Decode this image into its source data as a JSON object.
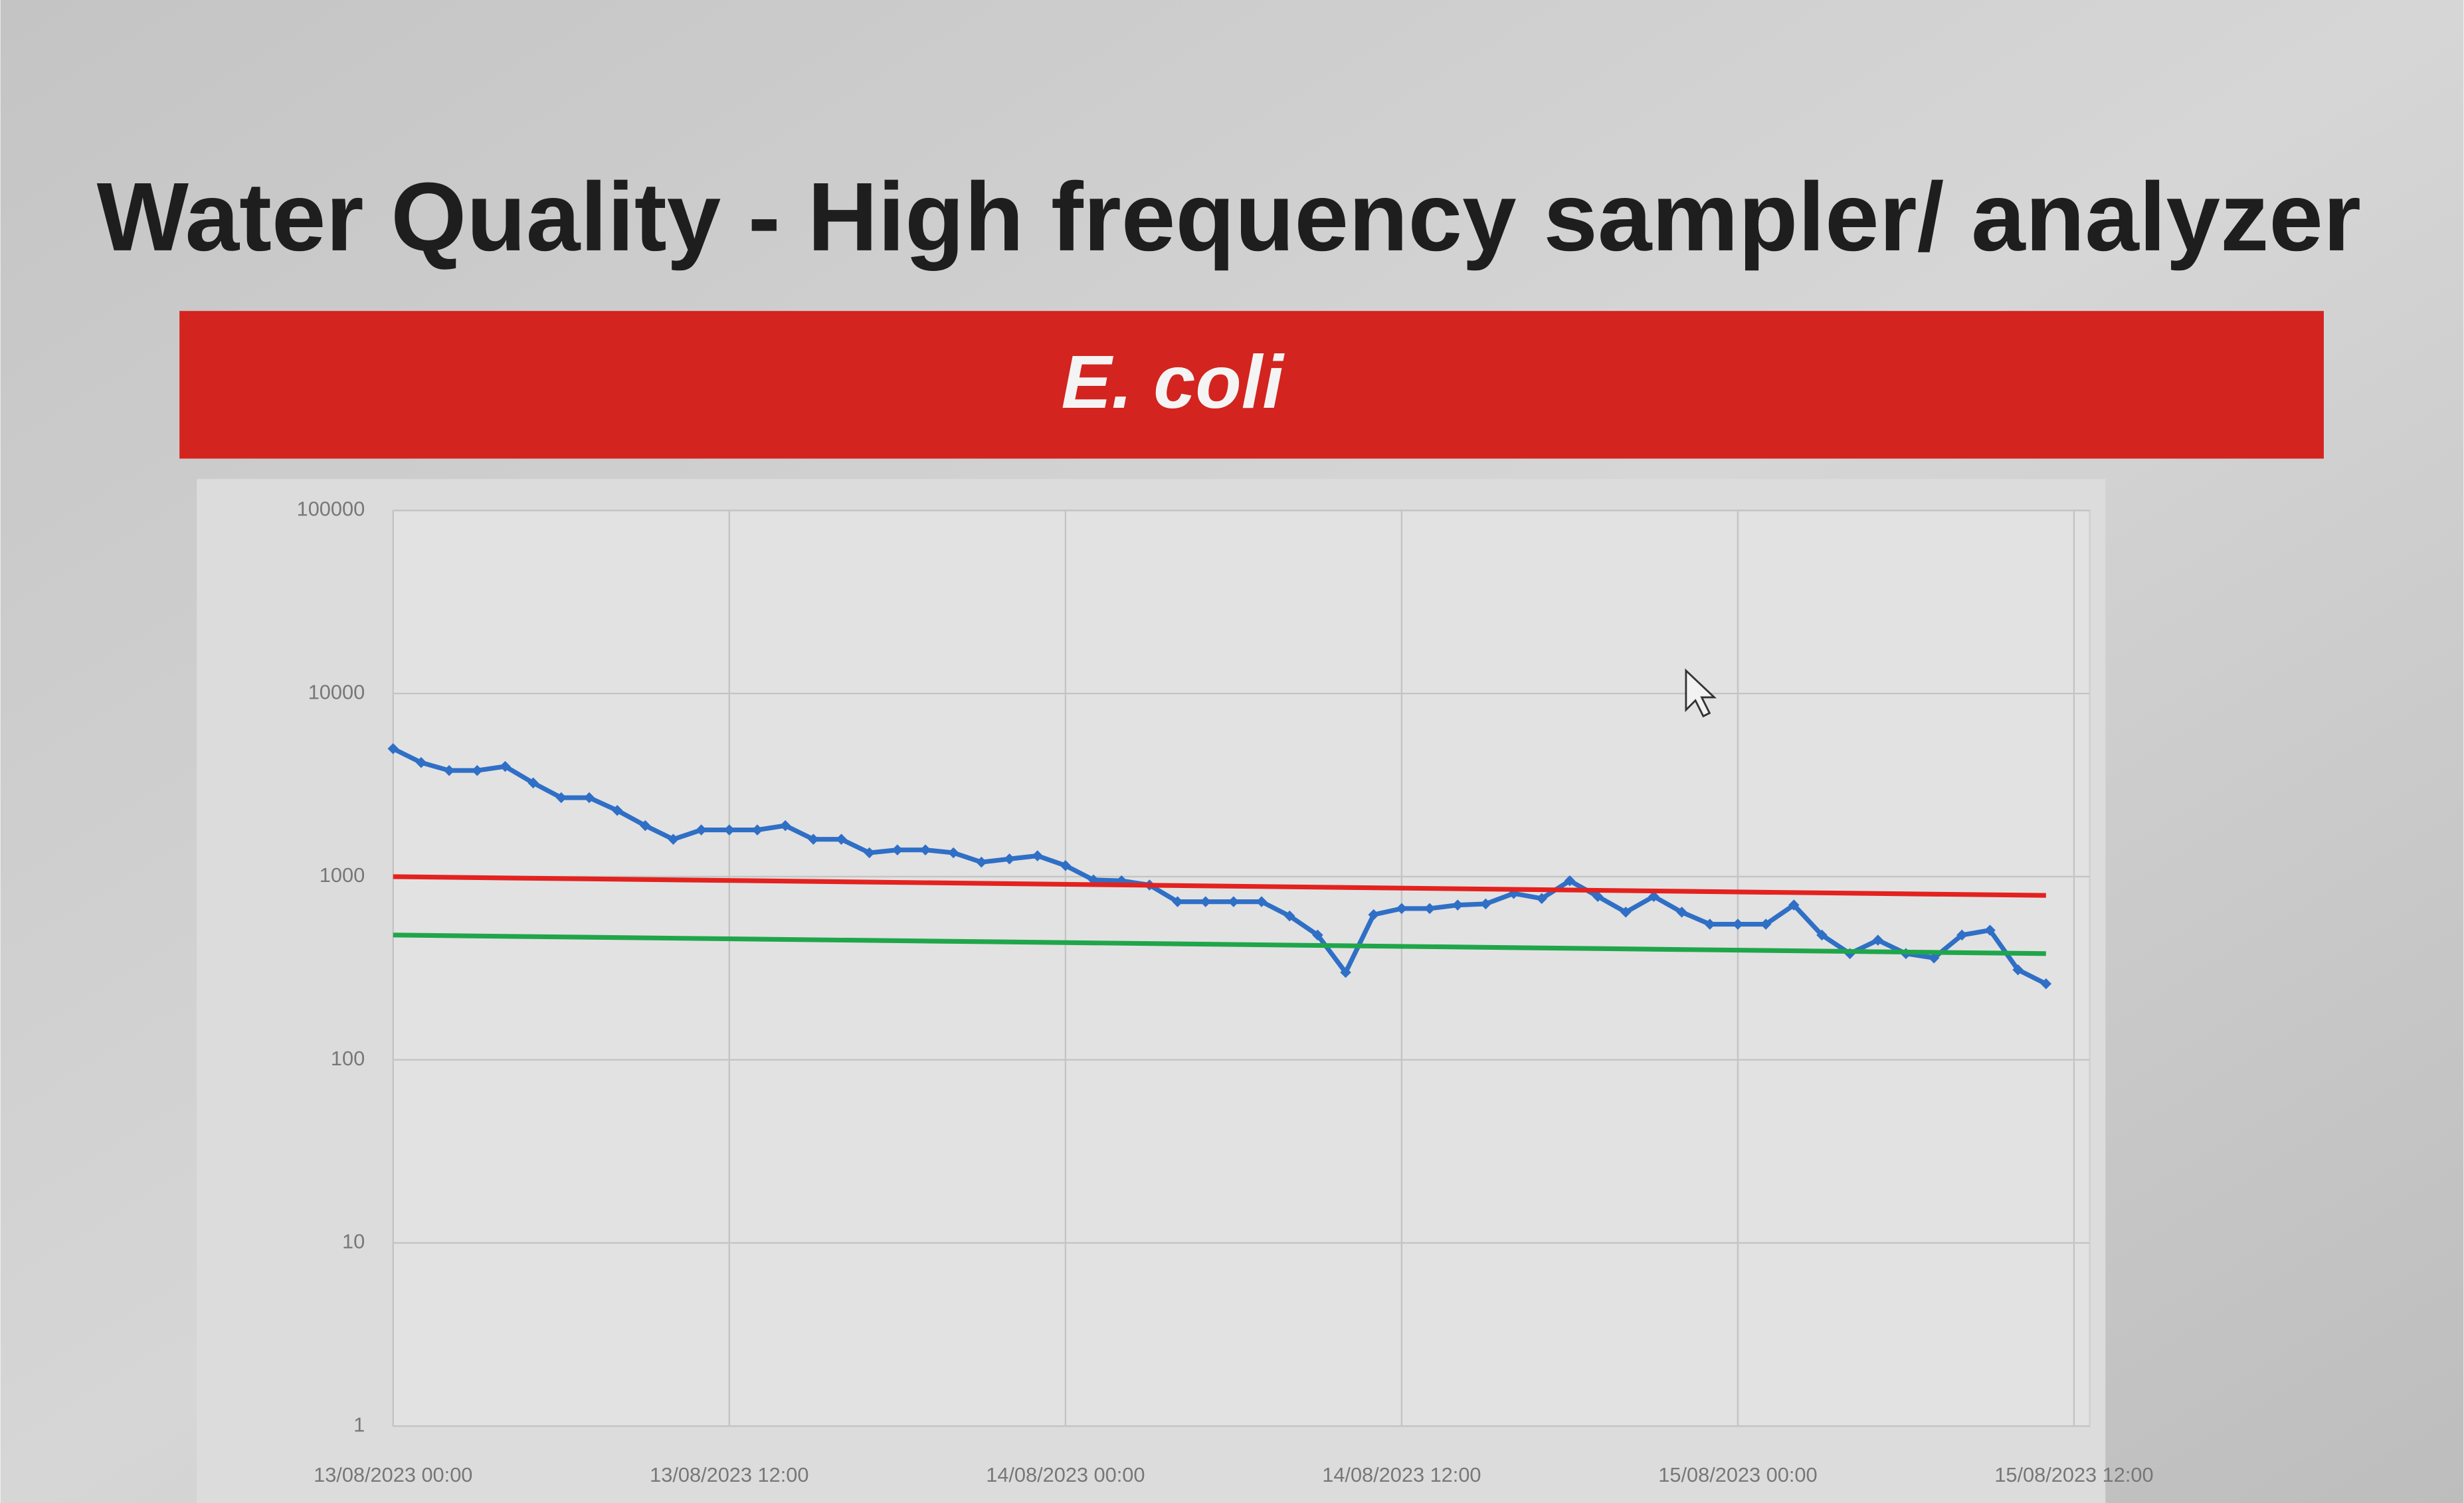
{
  "chart_data": {
    "type": "line",
    "title": "Water Quality - High frequency sampler/ analyzer",
    "subtitle": "E. coli",
    "log_scale": true,
    "grid": true,
    "ylim": [
      1,
      100000
    ],
    "yticks": [
      1,
      10,
      100,
      1000,
      10000,
      100000
    ],
    "xlim": [
      "13/08/2023 00:00",
      "15/08/2023 12:00"
    ],
    "xticks": [
      "13/08/2023 00:00",
      "13/08/2023 12:00",
      "14/08/2023 00:00",
      "14/08/2023 12:00",
      "15/08/2023 00:00",
      "15/08/2023 12:00"
    ],
    "series": [
      {
        "color": "#2f6fc6",
        "markers": true,
        "x": [
          "13/08/2023 00:00",
          "13/08/2023 01:00",
          "13/08/2023 02:00",
          "13/08/2023 03:00",
          "13/08/2023 04:00",
          "13/08/2023 05:00",
          "13/08/2023 06:00",
          "13/08/2023 07:00",
          "13/08/2023 08:00",
          "13/08/2023 09:00",
          "13/08/2023 10:00",
          "13/08/2023 11:00",
          "13/08/2023 12:00",
          "13/08/2023 13:00",
          "13/08/2023 14:00",
          "13/08/2023 15:00",
          "13/08/2023 16:00",
          "13/08/2023 17:00",
          "13/08/2023 18:00",
          "13/08/2023 19:00",
          "13/08/2023 20:00",
          "13/08/2023 21:00",
          "13/08/2023 22:00",
          "13/08/2023 23:00",
          "14/08/2023 00:00",
          "14/08/2023 01:00",
          "14/08/2023 02:00",
          "14/08/2023 03:00",
          "14/08/2023 04:00",
          "14/08/2023 05:00",
          "14/08/2023 06:00",
          "14/08/2023 07:00",
          "14/08/2023 08:00",
          "14/08/2023 09:00",
          "14/08/2023 10:00",
          "14/08/2023 11:00",
          "14/08/2023 12:00",
          "14/08/2023 13:00",
          "14/08/2023 14:00",
          "14/08/2023 15:00",
          "14/08/2023 16:00",
          "14/08/2023 17:00",
          "14/08/2023 18:00",
          "14/08/2023 19:00",
          "14/08/2023 20:00",
          "14/08/2023 21:00",
          "14/08/2023 22:00",
          "14/08/2023 23:00",
          "15/08/2023 00:00",
          "15/08/2023 01:00",
          "15/08/2023 02:00",
          "15/08/2023 03:00",
          "15/08/2023 04:00",
          "15/08/2023 05:00",
          "15/08/2023 06:00",
          "15/08/2023 07:00",
          "15/08/2023 08:00",
          "15/08/2023 09:00",
          "15/08/2023 10:00",
          "15/08/2023 11:00"
        ],
        "values": [
          5000,
          4200,
          3800,
          3800,
          4000,
          3250,
          2700,
          2700,
          2300,
          1900,
          1600,
          1800,
          1800,
          1800,
          1900,
          1600,
          1600,
          1350,
          1400,
          1400,
          1350,
          1200,
          1250,
          1300,
          1150,
          960,
          950,
          900,
          730,
          730,
          730,
          730,
          610,
          480,
          300,
          620,
          670,
          670,
          700,
          710,
          810,
          760,
          950,
          780,
          640,
          780,
          640,
          550,
          550,
          550,
          700,
          480,
          380,
          450,
          380,
          360,
          480,
          510,
          310,
          260
        ]
      },
      {
        "color": "#e3221f",
        "markers": false,
        "x": [
          "13/08/2023 00:00",
          "15/08/2023 11:00"
        ],
        "values": [
          1000,
          790
        ]
      },
      {
        "color": "#1fa64a",
        "markers": false,
        "x": [
          "13/08/2023 00:00",
          "15/08/2023 11:00"
        ],
        "values": [
          480,
          380
        ]
      }
    ]
  }
}
